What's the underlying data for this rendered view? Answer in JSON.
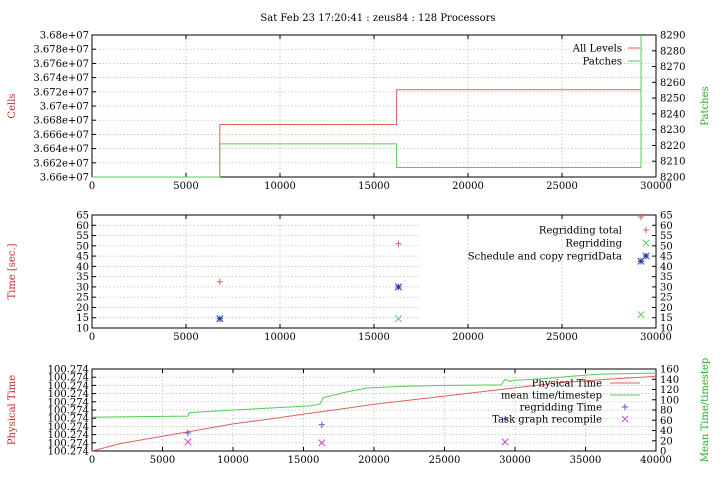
{
  "title": "Sat Feb 23 17:20:41 : zeus84 : 128 Processors",
  "colors": {
    "red": "#e06060",
    "green": "#55cc55",
    "blue": "#2233aa",
    "magenta": "#cc44cc",
    "purple": "#6655cc",
    "label_red": "#cc2222",
    "label_green": "#22aa22"
  },
  "chart_data": [
    {
      "type": "line",
      "ylabel": "Cells",
      "y2label": "Patches",
      "xlim": [
        0,
        30000
      ],
      "ylim": [
        36600000,
        36800000
      ],
      "y2lim": [
        8200,
        8290
      ],
      "xticks": [
        "0",
        "5000",
        "10000",
        "15000",
        "20000",
        "25000",
        "30000"
      ],
      "xtick_values": [
        0,
        5000,
        10000,
        15000,
        20000,
        25000,
        30000
      ],
      "yticks": [
        "3.66e+07",
        "3.662e+07",
        "3.664e+07",
        "3.666e+07",
        "3.668e+07",
        "3.67e+07",
        "3.672e+07",
        "3.674e+07",
        "3.676e+07",
        "3.678e+07",
        "3.68e+07"
      ],
      "ytick_values": [
        36600000,
        36620000,
        36640000,
        36660000,
        36680000,
        36700000,
        36720000,
        36740000,
        36760000,
        36780000,
        36800000
      ],
      "y2ticks": [
        "8200",
        "8210",
        "8220",
        "8230",
        "8240",
        "8250",
        "8260",
        "8270",
        "8280",
        "8290"
      ],
      "y2tick_values": [
        8200,
        8210,
        8220,
        8230,
        8240,
        8250,
        8260,
        8270,
        8280,
        8290
      ],
      "grid": true,
      "legend_position": "top-right",
      "series": [
        {
          "name": "All Levels",
          "axis": "y",
          "color": "#e06060",
          "x": [
            0,
            6800,
            6800,
            16200,
            16200,
            29200,
            29200
          ],
          "y": [
            36600000,
            36600000,
            36674000,
            36674000,
            36723000,
            36723000,
            36800000
          ]
        },
        {
          "name": "Patches",
          "axis": "y2",
          "color": "#55cc55",
          "x": [
            0,
            6800,
            6800,
            16200,
            16200,
            29200,
            29200
          ],
          "y": [
            8200,
            8200,
            8221,
            8221,
            8206,
            8206,
            8290
          ]
        }
      ]
    },
    {
      "type": "scatter",
      "ylabel": "Time [sec.]",
      "xlim": [
        0,
        30000
      ],
      "ylim": [
        10,
        65
      ],
      "xticks": [
        "0",
        "5000",
        "10000",
        "15000",
        "20000",
        "25000",
        "30000"
      ],
      "xtick_values": [
        0,
        5000,
        10000,
        15000,
        20000,
        25000,
        30000
      ],
      "yticks": [
        "10",
        "15",
        "20",
        "25",
        "30",
        "35",
        "40",
        "45",
        "50",
        "55",
        "60",
        "65"
      ],
      "ytick_values": [
        10,
        15,
        20,
        25,
        30,
        35,
        40,
        45,
        50,
        55,
        60,
        65
      ],
      "grid": true,
      "legend_position": "top-right",
      "series": [
        {
          "name": "Regridding total",
          "marker": "plus",
          "color": "#e06060",
          "x": [
            6800,
            16300,
            29200
          ],
          "y": [
            32.5,
            51,
            64
          ]
        },
        {
          "name": "Regridding",
          "marker": "cross",
          "color": "#55cc55",
          "x": [
            6800,
            16300,
            29200
          ],
          "y": [
            14.5,
            14.5,
            16.5
          ]
        },
        {
          "name": "Schedule and copy regridData",
          "marker": "star",
          "color": "#2233aa",
          "x": [
            6800,
            16300,
            29200
          ],
          "y": [
            14.5,
            30,
            42.5
          ]
        }
      ]
    },
    {
      "type": "line",
      "ylabel": "Physical Time",
      "y2label": "Mean Time/timestep",
      "xlim": [
        0,
        40000
      ],
      "ylim": [
        0,
        10
      ],
      "y2lim": [
        0,
        160
      ],
      "xticks": [
        "0",
        "5000",
        "10000",
        "15000",
        "20000",
        "25000",
        "30000",
        "35000",
        "40000"
      ],
      "xtick_values": [
        0,
        5000,
        10000,
        15000,
        20000,
        25000,
        30000,
        35000,
        40000
      ],
      "yticks": [
        "100.274",
        "100.274",
        "100.274",
        "100.274",
        "100.274",
        "100.274",
        "100.274",
        "100.274",
        "100.274",
        "100.274",
        "100.274"
      ],
      "ytick_values": [
        0,
        1,
        2,
        3,
        4,
        5,
        6,
        7,
        8,
        9,
        10
      ],
      "y2ticks": [
        "0",
        "20",
        "40",
        "60",
        "80",
        "100",
        "120",
        "140",
        "160"
      ],
      "y2tick_values": [
        0,
        20,
        40,
        60,
        80,
        100,
        120,
        140,
        160
      ],
      "grid": true,
      "legend_position": "top-right",
      "series": [
        {
          "name": "Physical Time",
          "axis": "y",
          "color": "#e06060",
          "x": [
            0,
            2000,
            5000,
            8000,
            10000,
            13000,
            15000,
            18000,
            20000,
            22000,
            25000,
            28000,
            30000,
            33000,
            36000,
            38000,
            40000
          ],
          "y": [
            0,
            0.9,
            1.8,
            2.7,
            3.3,
            4.0,
            4.5,
            5.2,
            5.7,
            6.1,
            6.7,
            7.3,
            7.7,
            8.3,
            8.7,
            8.9,
            9.1
          ]
        },
        {
          "name": "mean time/timestep",
          "axis": "y2",
          "color": "#55cc55",
          "x": [
            0,
            6800,
            6900,
            10000,
            15500,
            16200,
            16400,
            18000,
            19500,
            22000,
            25000,
            29000,
            29300,
            29600,
            30000,
            32000,
            34000,
            36000,
            38000,
            40000
          ],
          "y": [
            66,
            68,
            75,
            80,
            88,
            92,
            104,
            115,
            123,
            126,
            128,
            129,
            140,
            136,
            138,
            141,
            146,
            150,
            151,
            152
          ]
        },
        {
          "name": "regridding Time",
          "axis": "y",
          "marker": "plus",
          "color": "#6655cc",
          "x": [
            6800,
            16300,
            29300
          ],
          "y": [
            2.2,
            3.2,
            3.9
          ]
        },
        {
          "name": "Task graph recompile",
          "axis": "y",
          "marker": "cross",
          "color": "#cc44cc",
          "x": [
            6800,
            16300,
            29300
          ],
          "y": [
            1.1,
            1.0,
            1.1
          ]
        }
      ]
    }
  ]
}
